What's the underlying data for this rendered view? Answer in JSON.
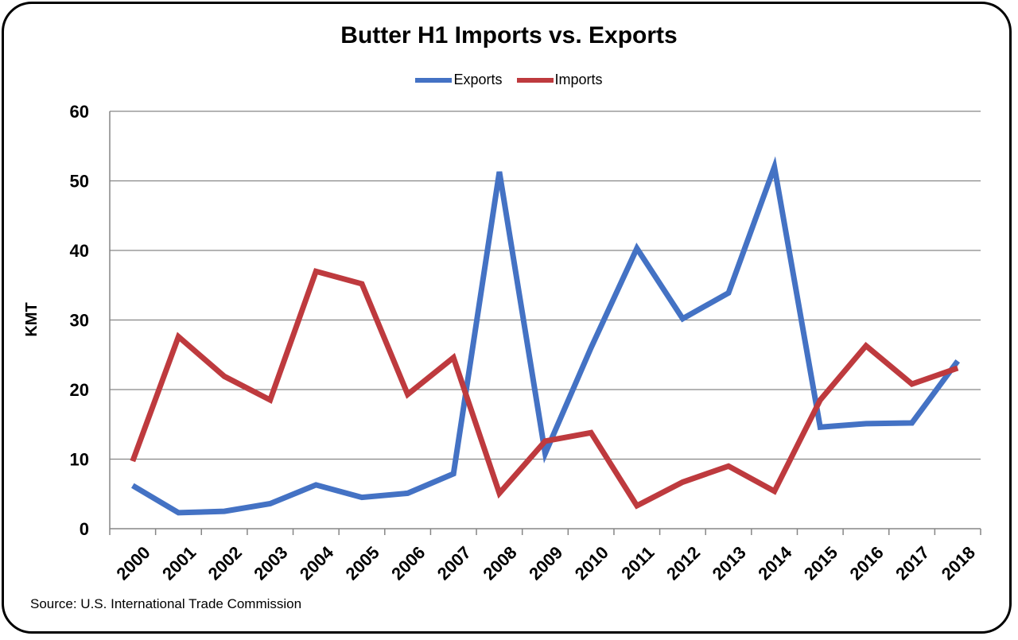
{
  "title": "Butter H1 Imports vs. Exports",
  "source": "Source:  U.S. International Trade Commission",
  "colors": {
    "exports": "#4472C4",
    "imports": "#BE3A3E",
    "grid": "#868686"
  },
  "chart_data": {
    "type": "line",
    "title": "Butter H1 Imports vs. Exports",
    "xlabel": "",
    "ylabel": "KMT",
    "ylim": [
      0,
      60
    ],
    "yticks": [
      "0",
      "10",
      "20",
      "30",
      "40",
      "50",
      "60"
    ],
    "grid": true,
    "legend_position": "top-center",
    "categories": [
      "2000",
      "2001",
      "2002",
      "2003",
      "2004",
      "2005",
      "2006",
      "2007",
      "2008",
      "2009",
      "2010",
      "2011",
      "2012",
      "2013",
      "2014",
      "2015",
      "2016",
      "2017",
      "2018"
    ],
    "series": [
      {
        "name": "Exports",
        "color": "#4472C4",
        "values": [
          6.2,
          2.3,
          2.5,
          3.6,
          6.3,
          4.5,
          5.1,
          7.9,
          51.3,
          10.8,
          26.0,
          40.3,
          30.2,
          33.9,
          52.0,
          14.6,
          15.1,
          15.2,
          24.1
        ]
      },
      {
        "name": "Imports",
        "color": "#BE3A3E",
        "values": [
          9.7,
          27.6,
          21.9,
          18.5,
          37.0,
          35.2,
          19.3,
          24.6,
          5.1,
          12.6,
          13.8,
          3.3,
          6.7,
          9.0,
          5.4,
          18.5,
          26.3,
          20.8,
          23.1
        ]
      }
    ]
  }
}
